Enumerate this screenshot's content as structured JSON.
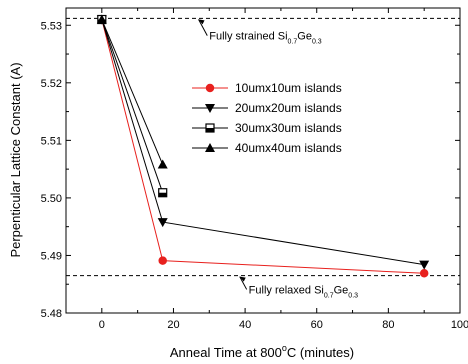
{
  "chart_data": {
    "type": "line",
    "title": "",
    "xlabel": {
      "prefix": "Anneal Time at 800",
      "sup": "o",
      "suffix": "C (minutes)"
    },
    "ylabel": "Perpenticular Lattice Constant (A)",
    "xlim": [
      -10,
      100
    ],
    "ylim": [
      5.48,
      5.533
    ],
    "x_ticks": [
      0,
      20,
      40,
      60,
      80,
      100
    ],
    "y_ticks": [
      5.48,
      5.49,
      5.5,
      5.51,
      5.52,
      5.53
    ],
    "x_tick_labels": [
      "0",
      "20",
      "40",
      "60",
      "80",
      "100"
    ],
    "y_tick_labels": [
      "5.48",
      "5.49",
      "5.50",
      "5.51",
      "5.52",
      "5.53"
    ],
    "grid": false,
    "legend_position": "center-right",
    "series": [
      {
        "name": "10umx10um islands",
        "marker": "circle",
        "color": "#e8211e",
        "x": [
          0,
          17,
          90
        ],
        "y": [
          5.531,
          5.4891,
          5.4869
        ]
      },
      {
        "name": "20umx20um islands",
        "marker": "triangle-down",
        "color": "#000000",
        "x": [
          0,
          17,
          90
        ],
        "y": [
          5.531,
          5.4958,
          5.4884
        ]
      },
      {
        "name": "30umx30um islands",
        "marker": "square-half",
        "color": "#000000",
        "x": [
          0,
          17
        ],
        "y": [
          5.531,
          5.5009
        ]
      },
      {
        "name": "40umx40um islands",
        "marker": "triangle-up",
        "color": "#000000",
        "x": [
          0,
          17
        ],
        "y": [
          5.531,
          5.5058
        ]
      }
    ],
    "reference_lines": [
      {
        "y": 5.5312,
        "style": "dashed",
        "label": {
          "prefix": "Fully strained Si",
          "sub1": "0.7",
          "mid": "Ge",
          "sub2": "0.3"
        },
        "arrow_to_x": 27,
        "label_x": 30,
        "label_y": 5.5275
      },
      {
        "y": 5.4865,
        "style": "dashed",
        "label": {
          "prefix": "Fully relaxed Si",
          "sub1": "0.7",
          "mid": "Ge",
          "sub2": "0.3"
        },
        "arrow_to_x": 38.5,
        "label_x": 41,
        "label_y": 5.4834
      }
    ]
  }
}
